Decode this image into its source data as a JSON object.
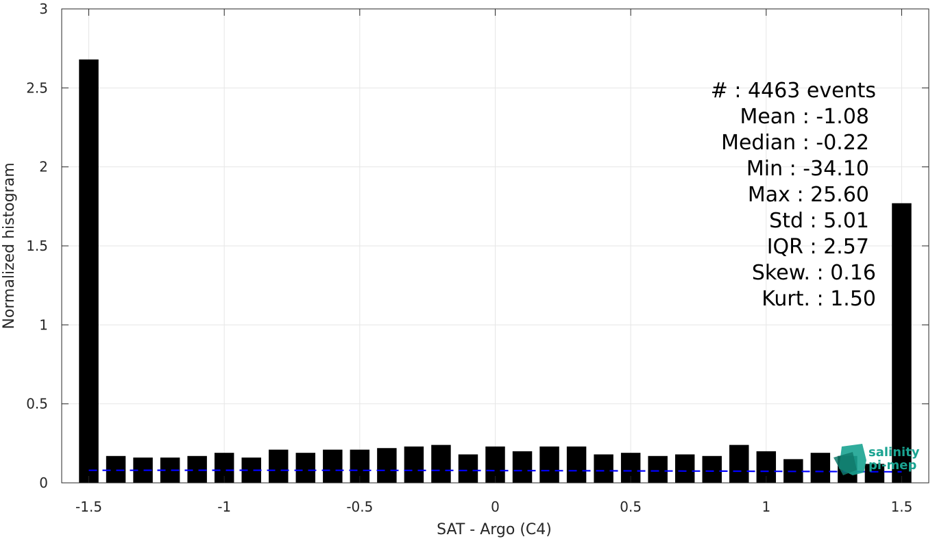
{
  "chart_data": {
    "type": "bar",
    "xlabel": "SAT - Argo (C4)",
    "ylabel": "Normalized histogram",
    "xlim": [
      -1.6,
      1.6
    ],
    "ylim": [
      0,
      3
    ],
    "x_ticks": [
      -1.5,
      -1,
      -0.5,
      0,
      0.5,
      1,
      1.5
    ],
    "x_tick_labels": [
      "-1.5",
      "-1",
      "-0.5",
      "0",
      "0.5",
      "1",
      "1.5"
    ],
    "y_ticks": [
      0,
      0.5,
      1,
      1.5,
      2,
      2.5,
      3
    ],
    "y_tick_labels": [
      "0",
      "0.5",
      "1",
      "1.5",
      "2",
      "2.5",
      "3"
    ],
    "grid": true,
    "bar_color": "#000000",
    "bars": {
      "x": [
        -1.5,
        -1.4,
        -1.3,
        -1.2,
        -1.1,
        -1.0,
        -0.9,
        -0.8,
        -0.7,
        -0.6,
        -0.5,
        -0.4,
        -0.3,
        -0.2,
        -0.1,
        0.0,
        0.1,
        0.2,
        0.3,
        0.4,
        0.5,
        0.6,
        0.7,
        0.8,
        0.9,
        1.0,
        1.1,
        1.2,
        1.3,
        1.4,
        1.5
      ],
      "values": [
        2.68,
        0.17,
        0.16,
        0.16,
        0.17,
        0.19,
        0.16,
        0.21,
        0.19,
        0.21,
        0.21,
        0.22,
        0.23,
        0.24,
        0.18,
        0.23,
        0.2,
        0.23,
        0.23,
        0.18,
        0.19,
        0.17,
        0.18,
        0.17,
        0.24,
        0.2,
        0.15,
        0.19,
        0.17,
        0.12,
        1.77
      ]
    },
    "fit_curve": {
      "style": "dashed",
      "color": "#0000ff",
      "mean": -1.08,
      "std": 5.01,
      "x_range": [
        -1.5,
        1.5
      ]
    },
    "stats": [
      {
        "label": "#  ",
        "value": ": 4463 events"
      },
      {
        "label": "Mean",
        "value": ": -1.08"
      },
      {
        "label": "Median",
        "value": ": -0.22"
      },
      {
        "label": "Min",
        "value": ": -34.10"
      },
      {
        "label": "Max",
        "value": ": 25.60"
      },
      {
        "label": "Std",
        "value": ": 5.01"
      },
      {
        "label": "IQR",
        "value": ": 2.57"
      },
      {
        "label": "Skew.",
        "value": ": 0.16"
      },
      {
        "label": "Kurt.",
        "value": ": 1.50"
      }
    ]
  },
  "logo": {
    "line1": "salinity",
    "line2": "pi-mep",
    "color": "#1aa391"
  }
}
